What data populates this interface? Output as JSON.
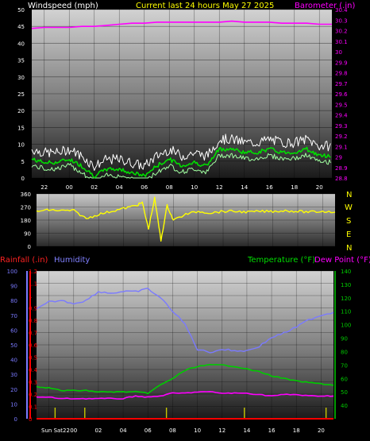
{
  "header": {
    "windspeed_label": "Windspeed (mph)",
    "current_label": "Current last 24 hours May 27 2025",
    "barometer_label": "Barometer (.in)"
  },
  "lower_header": {
    "rainfall_label": "Rainfall (.in)",
    "humidity_label": "Humidity",
    "temperature_label": "Temperature (°F)",
    "dewpoint_label": "Dew Point (°F)"
  },
  "colors": {
    "windspeed": "#ffffff",
    "wind_gust": "#ffffff",
    "wind_avg": "#00dd00",
    "barometer": "#ff00ff",
    "direction": "#ffff00",
    "rainfall": "#ff0000",
    "humidity": "#7a7aff",
    "temperature": "#00cc00",
    "dewpoint": "#ff00ff"
  },
  "compass": [
    "N",
    "W",
    "S",
    "E",
    "N"
  ],
  "x_ticks": [
    "22",
    "00",
    "02",
    "04",
    "06",
    "08",
    "10",
    "12",
    "14",
    "16",
    "18",
    "20"
  ],
  "x_ticks_lower": [
    "Sun Sat22",
    "00",
    "02",
    "04",
    "06",
    "08",
    "10",
    "12",
    "14",
    "16",
    "18",
    "20"
  ],
  "chart_data": [
    {
      "type": "line",
      "name": "wind-barometer",
      "x_hours": [
        21,
        22,
        23,
        24,
        25,
        26,
        27,
        28,
        29,
        30,
        31,
        32,
        33,
        34,
        35,
        36,
        37,
        38,
        39,
        40,
        41,
        42,
        43,
        44,
        45
      ],
      "series": [
        {
          "name": "Windspeed",
          "axis": "left",
          "values": [
            6,
            5,
            5,
            6,
            4,
            1,
            3,
            3,
            2,
            1,
            4,
            6,
            4,
            5,
            4,
            9,
            9,
            8,
            8,
            9,
            8,
            8,
            9,
            7,
            7
          ]
        },
        {
          "name": "Barometer",
          "axis": "right",
          "values": [
            30.22,
            30.23,
            30.23,
            30.23,
            30.24,
            30.24,
            30.25,
            30.26,
            30.27,
            30.27,
            30.28,
            30.28,
            30.28,
            30.28,
            30.28,
            30.28,
            30.29,
            30.28,
            30.28,
            30.28,
            30.27,
            30.27,
            30.27,
            30.26,
            30.26
          ]
        }
      ],
      "ylabel": "Windspeed (mph)",
      "y2label": "Barometer (.in)",
      "ylim": [
        0,
        50
      ],
      "y_ticks": [
        0,
        5,
        10,
        15,
        20,
        25,
        30,
        35,
        40,
        45,
        50
      ],
      "y2lim": [
        28.8,
        30.4
      ],
      "y2_ticks": [
        28.8,
        28.9,
        29.0,
        29.1,
        29.2,
        29.3,
        29.4,
        29.5,
        29.6,
        29.7,
        29.8,
        29.9,
        30.0,
        30.1,
        30.2,
        30.3,
        30.4
      ],
      "y2_tick_labels": [
        "28.8",
        "28.9",
        "29",
        "29.1",
        "29.2",
        "29.3",
        "29.4",
        "29.5",
        "29.6",
        "29.7",
        "29.8",
        "29.9",
        "30",
        "30.1",
        "30.2",
        "30.3",
        "30.4"
      ],
      "grid": true
    },
    {
      "type": "line",
      "name": "wind-direction",
      "x_hours": [
        21,
        22,
        23,
        24,
        25,
        26,
        27,
        28,
        29,
        29.5,
        30,
        30.5,
        31,
        31.5,
        32,
        33,
        34,
        35,
        36,
        37,
        38,
        39,
        40,
        41,
        42,
        43,
        44,
        45
      ],
      "series": [
        {
          "name": "Direction",
          "values": [
            240,
            250,
            245,
            245,
            190,
            220,
            240,
            260,
            280,
            300,
            120,
            330,
            40,
            280,
            180,
            220,
            240,
            230,
            240,
            240,
            235,
            240,
            240,
            245,
            240,
            235,
            240,
            235
          ]
        }
      ],
      "ylim": [
        0,
        360
      ],
      "y_ticks": [
        0,
        90,
        180,
        270,
        360
      ],
      "grid": true
    },
    {
      "type": "line",
      "name": "rain-humidity-temperature",
      "x_hours": [
        21,
        22,
        23,
        24,
        25,
        26,
        27,
        28,
        29,
        30,
        31,
        32,
        33,
        34,
        35,
        36,
        37,
        38,
        39,
        40,
        41,
        42,
        43,
        44,
        45
      ],
      "series": [
        {
          "name": "Rainfall",
          "axis": "rain",
          "values": [
            0,
            0,
            0,
            0,
            0,
            0,
            0,
            0,
            0,
            0,
            0,
            0,
            0,
            0,
            0,
            0,
            0,
            0,
            0,
            0,
            0,
            0,
            0,
            0,
            0
          ]
        },
        {
          "name": "Humidity",
          "axis": "humidity",
          "values": [
            74,
            79,
            80,
            78,
            80,
            86,
            85,
            86,
            86,
            88,
            82,
            73,
            64,
            47,
            45,
            47,
            46,
            46,
            49,
            55,
            58,
            62,
            67,
            70,
            72
          ]
        },
        {
          "name": "Temperature",
          "axis": "temperature",
          "values": [
            54,
            53,
            51,
            51,
            51,
            50,
            50,
            50,
            50,
            49,
            55,
            60,
            66,
            69,
            70,
            70,
            69,
            67,
            65,
            62,
            60,
            58,
            57,
            56,
            55
          ]
        },
        {
          "name": "Dew Point",
          "axis": "temperature",
          "values": [
            46,
            46,
            45,
            45,
            45,
            45,
            45,
            45,
            47,
            46,
            47,
            49,
            49,
            50,
            50,
            49,
            49,
            49,
            48,
            47,
            48,
            48,
            47,
            47,
            47
          ]
        }
      ],
      "rain_lim": [
        0,
        1.2
      ],
      "rain_ticks": [
        0,
        0.1,
        0.2,
        0.3,
        0.4,
        0.5,
        0.6,
        0.7,
        0.8,
        0.9,
        1.0,
        1.1,
        1.2
      ],
      "rain_tick_labels": [
        "0",
        "0.1",
        "0.2",
        "0.3",
        "0.4",
        "0.5",
        "0.6",
        "0.7",
        "0.8",
        "0.9",
        "1",
        "1.1",
        "1.2"
      ],
      "humidity_lim": [
        0,
        100
      ],
      "humidity_ticks": [
        0,
        10,
        20,
        30,
        40,
        50,
        60,
        70,
        80,
        90,
        100
      ],
      "temperature_lim": [
        30,
        140
      ],
      "temperature_ticks": [
        40,
        50,
        60,
        70,
        80,
        90,
        100,
        110,
        120,
        130,
        140
      ],
      "grid": true
    }
  ]
}
